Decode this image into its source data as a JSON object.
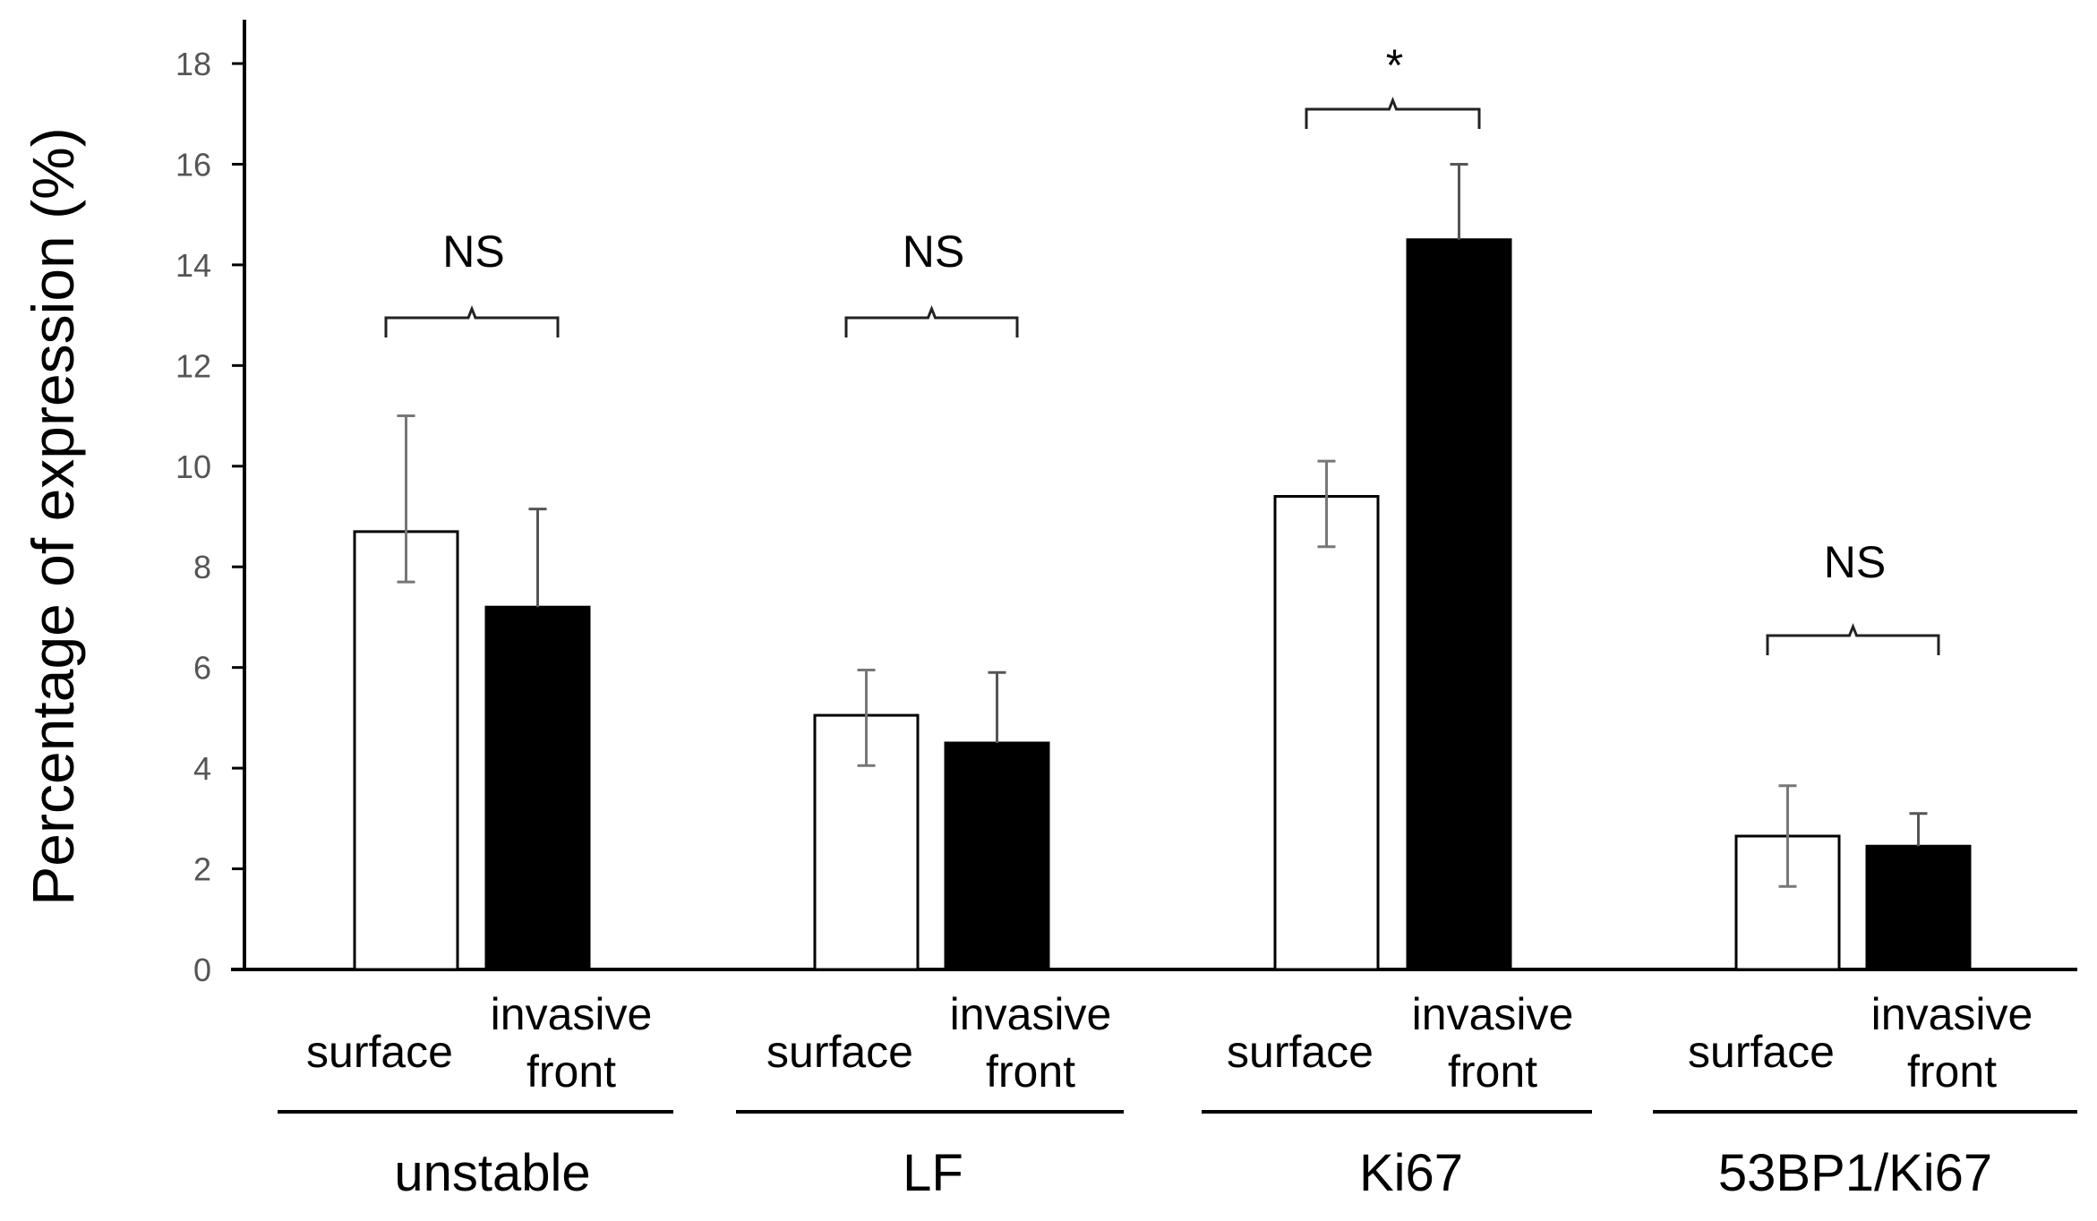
{
  "chart_data": {
    "type": "bar",
    "title": "",
    "xlabel": "",
    "ylabel": "Percentage of expression (%)",
    "ylim": [
      0,
      18
    ],
    "yticks": [
      0,
      2,
      4,
      6,
      8,
      10,
      12,
      14,
      16,
      18
    ],
    "grid": false,
    "series": [
      {
        "name": "surface",
        "color": "#ffffff",
        "edge": "#000000"
      },
      {
        "name": "invasive front",
        "color": "#000000",
        "edge": "#000000"
      }
    ],
    "groups": [
      {
        "name": "unstable",
        "significance": "NS",
        "bars": [
          {
            "series": 0,
            "label": "surface",
            "value": 8.7,
            "err_low": 7.7,
            "err_high": 11.0
          },
          {
            "series": 1,
            "label_lines": [
              "invasive",
              "front"
            ],
            "value": 7.2,
            "err_low": 7.2,
            "err_high": 9.15
          }
        ]
      },
      {
        "name": "LF",
        "significance": "NS",
        "bars": [
          {
            "series": 0,
            "label": "surface",
            "value": 5.05,
            "err_low": 4.05,
            "err_high": 5.95
          },
          {
            "series": 1,
            "label_lines": [
              "invasive",
              "front"
            ],
            "value": 4.5,
            "err_low": 4.5,
            "err_high": 5.9
          }
        ]
      },
      {
        "name": "Ki67",
        "significance": "*",
        "bars": [
          {
            "series": 0,
            "label": "surface",
            "value": 9.4,
            "err_low": 8.4,
            "err_high": 10.1
          },
          {
            "series": 1,
            "label_lines": [
              "invasive",
              "front"
            ],
            "value": 14.5,
            "err_low": 14.5,
            "err_high": 16.0
          }
        ]
      },
      {
        "name": "53BP1/Ki67",
        "significance": "NS",
        "bars": [
          {
            "series": 0,
            "label": "surface",
            "value": 2.65,
            "err_low": 1.65,
            "err_high": 3.65
          },
          {
            "series": 1,
            "label_lines": [
              "invasive",
              "front"
            ],
            "value": 2.45,
            "err_low": 2.45,
            "err_high": 3.1
          }
        ]
      }
    ]
  }
}
